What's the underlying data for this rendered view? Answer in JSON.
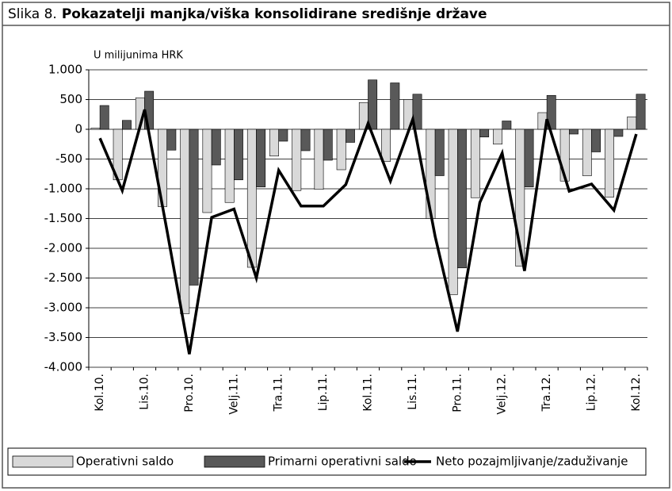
{
  "chart_data": {
    "type": "bar_line",
    "figure_label": "Slika 8.",
    "title": "Pokazatelji manjka/viška konsolidirane središnje države",
    "ylabel": "U milijunima HRK",
    "categories": [
      "Kol.10.",
      null,
      "Lis.10.",
      null,
      "Pro.10.",
      null,
      "Velj.11.",
      null,
      "Tra.11.",
      null,
      "Lip.11.",
      null,
      "Kol.11.",
      null,
      "Lis.11.",
      null,
      "Pro.11.",
      null,
      "Velj.12.",
      null,
      "Tra.12.",
      null,
      "Lip.12.",
      null,
      "Kol.12."
    ],
    "series": [
      {
        "name": "Operativni saldo",
        "type": "bar",
        "color": "#d9d9d9",
        "values": [
          20,
          -850,
          530,
          -1300,
          -3100,
          -1400,
          -1230,
          -2320,
          -450,
          -1030,
          -1010,
          -680,
          450,
          -540,
          500,
          -1500,
          -2780,
          -1150,
          -250,
          -2300,
          280,
          -870,
          -780,
          -1140,
          210
        ]
      },
      {
        "name": "Primarni operativni saldo",
        "type": "bar",
        "color": "#595959",
        "values": [
          400,
          150,
          640,
          -350,
          -2620,
          -600,
          -850,
          -970,
          -200,
          -360,
          -520,
          -220,
          830,
          780,
          590,
          -780,
          -2330,
          -130,
          140,
          -970,
          570,
          -80,
          -380,
          -120,
          590
        ]
      },
      {
        "name": "Neto pozajmljivanje/zaduživanje",
        "type": "line",
        "color": "#000000",
        "values": [
          -150,
          -1030,
          330,
          -1700,
          -3780,
          -1480,
          -1340,
          -2500,
          -690,
          -1290,
          -1290,
          -930,
          100,
          -870,
          170,
          -1800,
          -3400,
          -1230,
          -400,
          -2380,
          170,
          -1040,
          -920,
          -1360,
          -80
        ]
      }
    ],
    "ylim": [
      -4000,
      1000
    ],
    "yticks": [
      {
        "value": -4000,
        "label": "-4.000"
      },
      {
        "value": -3500,
        "label": "-3.500"
      },
      {
        "value": -3000,
        "label": "-3.000"
      },
      {
        "value": -2500,
        "label": "-2.500"
      },
      {
        "value": -2000,
        "label": "-2.000"
      },
      {
        "value": -1500,
        "label": "-1.500"
      },
      {
        "value": -1000,
        "label": "-1.000"
      },
      -500,
      0,
      500,
      {
        "value": 1000,
        "label": "1.000"
      }
    ],
    "grid": true,
    "legend": "bottom"
  }
}
